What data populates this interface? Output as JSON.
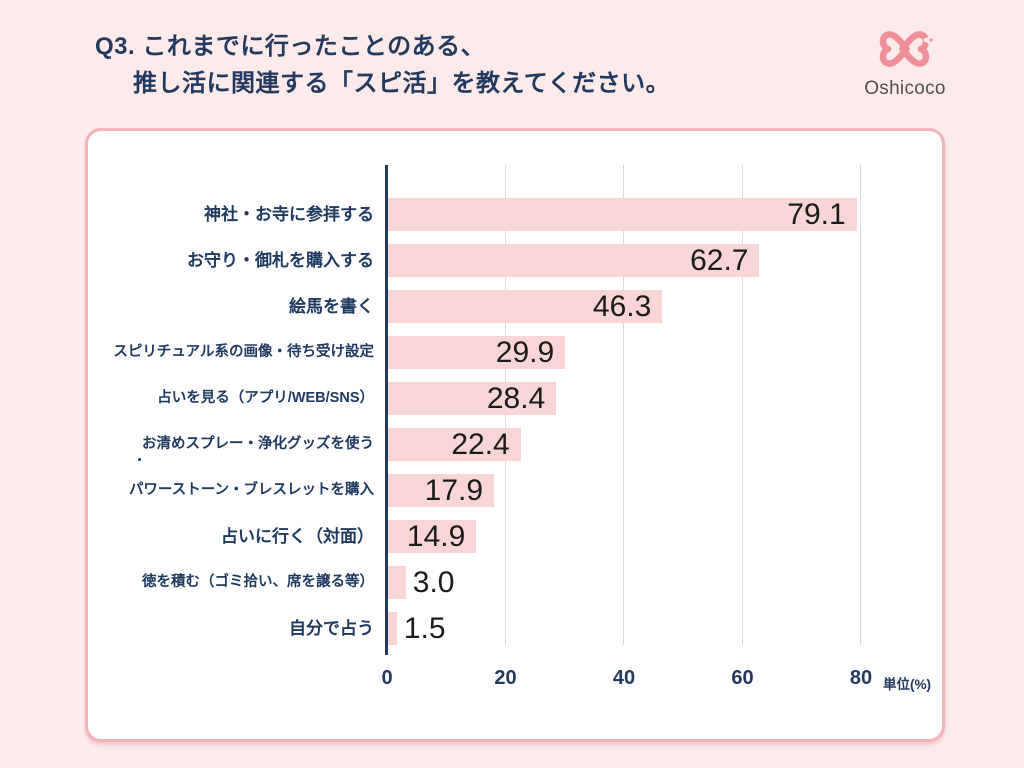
{
  "header": {
    "question_title_line1": "Q3. これまでに行ったことのある、",
    "question_title_line2": "推し活に関連する「スピ活」を教えてください。",
    "logo_text": "Oshicoco"
  },
  "chart_data": {
    "type": "bar",
    "orientation": "horizontal",
    "categories": [
      "神社・お寺に参拝する",
      "お守り・御札を購入する",
      "絵馬を書く",
      "スピリチュアル系の画像・待ち受け設定",
      "占いを見る（アプリ/WEB/SNS）",
      "お清めスプレー・浄化グッズを使う",
      "パワーストーン・ブレスレットを購入",
      "占いに行く（対面）",
      "徳を積む（ゴミ拾い、席を譲る等）",
      "自分で占う"
    ],
    "values": [
      79.1,
      62.7,
      46.3,
      29.9,
      28.4,
      22.4,
      17.9,
      14.9,
      3.0,
      1.5
    ],
    "value_labels": [
      "79.1",
      "62.7",
      "46.3",
      "29.9",
      "28.4",
      "22.4",
      "17.9",
      "14.9",
      "3.0",
      "1.5"
    ],
    "x_ticks": [
      0,
      20,
      40,
      60,
      80
    ],
    "xlim": [
      0,
      87
    ],
    "unit_label": "単位(%)",
    "grid": true,
    "legend": false,
    "bar_color": "#fad5d5",
    "category_label_color": "#1f3a60",
    "value_label_color": "#1b1b1b",
    "axis_color": "#233a60",
    "gridline_color": "#d9d9d9"
  },
  "colors": {
    "page_background": "#fdeaea",
    "card_background": "#ffffff",
    "card_border": "#f3b3b7",
    "accent_navy": "#233a60",
    "logo_pink": "#ef8f97"
  }
}
